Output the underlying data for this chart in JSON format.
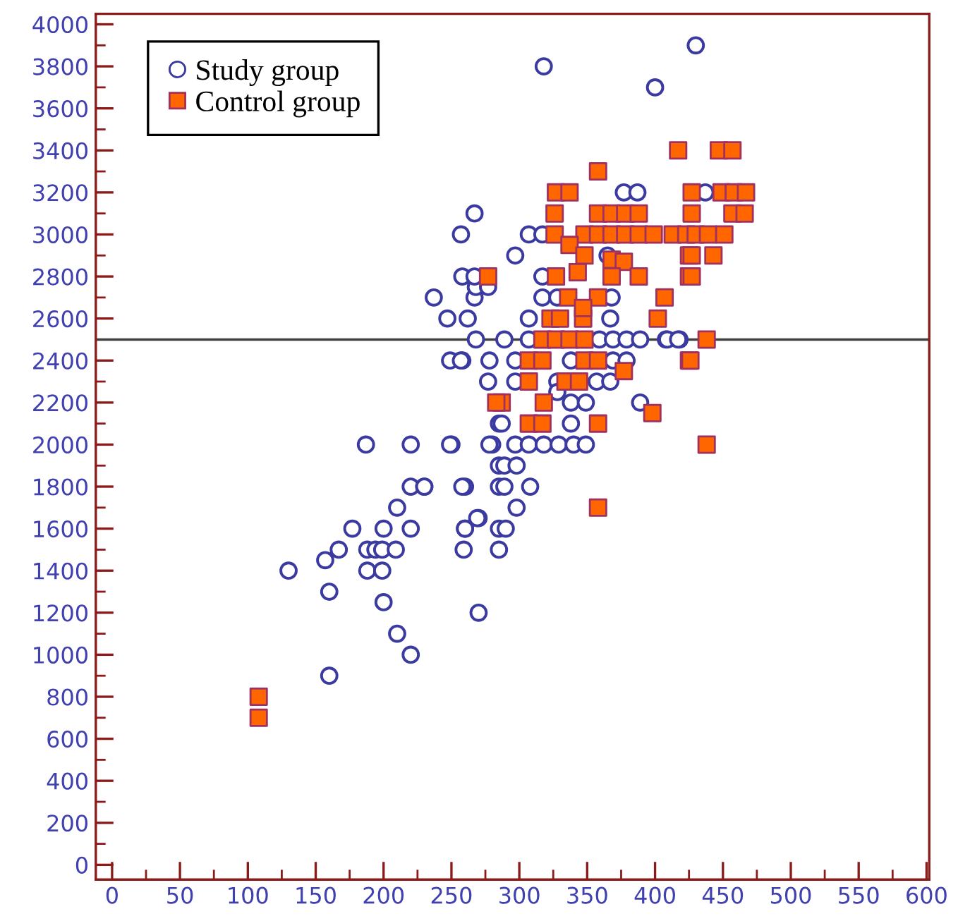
{
  "chart_data": {
    "type": "scatter",
    "xlim": [
      -12,
      602
    ],
    "ylim": [
      -70,
      4050
    ],
    "xticks": [
      0,
      50,
      100,
      150,
      200,
      250,
      300,
      350,
      400,
      450,
      500,
      550,
      600
    ],
    "yticks": [
      0,
      200,
      400,
      600,
      800,
      1000,
      1200,
      1400,
      1600,
      1800,
      2000,
      2200,
      2400,
      2600,
      2800,
      3000,
      3200,
      3400,
      3600,
      3800,
      4000
    ],
    "grid": false,
    "legend": "top left",
    "ref_lines": [
      {
        "axis": "y",
        "value": 2500,
        "color": "#404040"
      }
    ],
    "series": [
      {
        "name": "Study group",
        "color": "#3a3aa0",
        "marker": "circle",
        "x": [
          318,
          400,
          430,
          187,
          220,
          250,
          280,
          285,
          285,
          220,
          230,
          260,
          285,
          210,
          177,
          200,
          220,
          260,
          285,
          270,
          167,
          157,
          188,
          194,
          199,
          209,
          259,
          285,
          130,
          188,
          199,
          160,
          200,
          270,
          210,
          220,
          160,
          268,
          289,
          307,
          359,
          369,
          379,
          389,
          408,
          418,
          249,
          258,
          278,
          297,
          338,
          369,
          379,
          277,
          297,
          328,
          357,
          367,
          328,
          338,
          349,
          389,
          287,
          338,
          249,
          278,
          297,
          307,
          318,
          329,
          340,
          349,
          289,
          298,
          230,
          258,
          289,
          308,
          298,
          269,
          260,
          290,
          377,
          387,
          267,
          257,
          307,
          317,
          297,
          365,
          258,
          317,
          237,
          267,
          317,
          328,
          368,
          268,
          247,
          262,
          307,
          367,
          257,
          267,
          277,
          437,
          409,
          417
        ],
        "values": [
          3800,
          3700,
          3900,
          2000,
          2000,
          2000,
          2000,
          2100,
          1900,
          1800,
          1800,
          1800,
          1800,
          1700,
          1600,
          1600,
          1600,
          1600,
          1600,
          1650,
          1500,
          1450,
          1500,
          1500,
          1500,
          1500,
          1500,
          1500,
          1400,
          1400,
          1400,
          1300,
          1250,
          1200,
          1100,
          1000,
          900,
          2500,
          2500,
          2500,
          2500,
          2500,
          2500,
          2500,
          2500,
          2500,
          2400,
          2400,
          2400,
          2400,
          2400,
          2400,
          2400,
          2300,
          2300,
          2300,
          2300,
          2300,
          2250,
          2200,
          2200,
          2200,
          2100,
          2100,
          2000,
          2000,
          2000,
          2000,
          2000,
          2000,
          2000,
          2000,
          1900,
          1900,
          1800,
          1800,
          1800,
          1800,
          1700,
          1650,
          1600,
          1600,
          3200,
          3200,
          3100,
          3000,
          3000,
          3000,
          2900,
          2900,
          2800,
          2800,
          2700,
          2700,
          2700,
          2700,
          2700,
          2750,
          2600,
          2600,
          2600,
          2600,
          2400,
          2800,
          2750,
          3200,
          2500,
          2500
        ]
      },
      {
        "name": "Control group",
        "color": "#ff6600",
        "marker": "square",
        "x": [
          108,
          108,
          417,
          358,
          327,
          337,
          326,
          358,
          368,
          378,
          388,
          326,
          348,
          358,
          368,
          378,
          388,
          399,
          413,
          423,
          337,
          348,
          368,
          377,
          425,
          277,
          327,
          343,
          368,
          388,
          425,
          336,
          358,
          407,
          323,
          330,
          347,
          402,
          347,
          317,
          327,
          337,
          348,
          307,
          317,
          348,
          358,
          425,
          377,
          307,
          334,
          344,
          287,
          318,
          398,
          307,
          317,
          358,
          358,
          283,
          447,
          457,
          427,
          449,
          458,
          467,
          427,
          457,
          466,
          430,
          439,
          451,
          427,
          443,
          427,
          438,
          426,
          438
        ],
        "values": [
          800,
          700,
          3400,
          3300,
          3200,
          3200,
          3100,
          3100,
          3100,
          3100,
          3100,
          3000,
          3000,
          3000,
          3000,
          3000,
          3000,
          3000,
          3000,
          3000,
          2950,
          2900,
          2880,
          2870,
          2900,
          2800,
          2800,
          2820,
          2800,
          2800,
          2800,
          2700,
          2700,
          2700,
          2600,
          2600,
          2600,
          2600,
          2650,
          2500,
          2500,
          2500,
          2500,
          2400,
          2400,
          2400,
          2400,
          2400,
          2350,
          2300,
          2300,
          2300,
          2200,
          2200,
          2150,
          2100,
          2100,
          2100,
          1700,
          2200,
          3400,
          3400,
          3200,
          3200,
          3200,
          3200,
          3100,
          3100,
          3100,
          3000,
          3000,
          3000,
          2900,
          2900,
          2800,
          2500,
          2400,
          2000
        ]
      }
    ]
  }
}
